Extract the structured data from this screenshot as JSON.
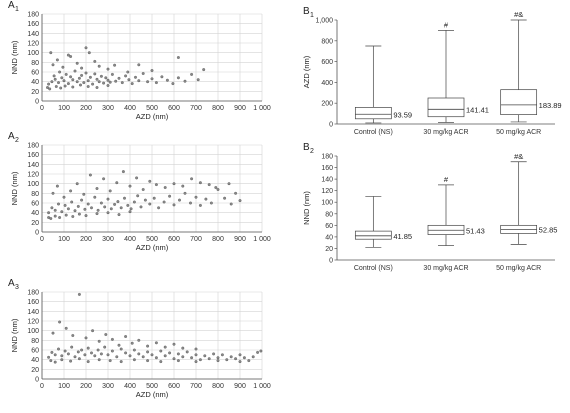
{
  "chart_data": [
    {
      "id": "A1",
      "type": "scatter",
      "panel_label": "A",
      "panel_sub": "1",
      "xlabel": "AZD (nm)",
      "ylabel": "NND (nm)",
      "xlim": [
        0,
        1000
      ],
      "ylim": [
        0,
        180
      ],
      "xticks": [
        "0",
        "100",
        "200",
        "300",
        "400",
        "500",
        "600",
        "700",
        "800",
        "900",
        "1 000"
      ],
      "yticks": [
        "0",
        "20",
        "40",
        "60",
        "80",
        "100",
        "120",
        "140",
        "160",
        "180"
      ],
      "grid": true,
      "points": [
        [
          30,
          35
        ],
        [
          45,
          40
        ],
        [
          55,
          52
        ],
        [
          60,
          45
        ],
        [
          75,
          38
        ],
        [
          80,
          60
        ],
        [
          90,
          48
        ],
        [
          100,
          42
        ],
        [
          110,
          55
        ],
        [
          120,
          36
        ],
        [
          130,
          50
        ],
        [
          140,
          44
        ],
        [
          150,
          62
        ],
        [
          160,
          40
        ],
        [
          170,
          47
        ],
        [
          180,
          53
        ],
        [
          190,
          38
        ],
        [
          200,
          58
        ],
        [
          210,
          42
        ],
        [
          220,
          49
        ],
        [
          230,
          35
        ],
        [
          240,
          56
        ],
        [
          250,
          45
        ],
        [
          260,
          40
        ],
        [
          270,
          51
        ],
        [
          280,
          37
        ],
        [
          290,
          48
        ],
        [
          300,
          43
        ],
        [
          310,
          39
        ],
        [
          320,
          55
        ],
        [
          335,
          41
        ],
        [
          350,
          47
        ],
        [
          365,
          38
        ],
        [
          380,
          52
        ],
        [
          395,
          44
        ],
        [
          410,
          36
        ],
        [
          425,
          49
        ],
        [
          440,
          42
        ],
        [
          460,
          57
        ],
        [
          480,
          40
        ],
        [
          500,
          46
        ],
        [
          520,
          38
        ],
        [
          545,
          50
        ],
        [
          570,
          43
        ],
        [
          595,
          36
        ],
        [
          620,
          48
        ],
        [
          650,
          41
        ],
        [
          680,
          55
        ],
        [
          710,
          44
        ],
        [
          735,
          65
        ],
        [
          50,
          75
        ],
        [
          70,
          85
        ],
        [
          95,
          70
        ],
        [
          130,
          92
        ],
        [
          180,
          68
        ],
        [
          200,
          110
        ],
        [
          215,
          100
        ],
        [
          240,
          82
        ],
        [
          260,
          72
        ],
        [
          300,
          66
        ],
        [
          330,
          74
        ],
        [
          390,
          60
        ],
        [
          440,
          75
        ],
        [
          500,
          63
        ],
        [
          620,
          90
        ],
        [
          40,
          100
        ],
        [
          120,
          95
        ],
        [
          160,
          78
        ],
        [
          25,
          28
        ],
        [
          35,
          25
        ],
        [
          65,
          30
        ],
        [
          85,
          27
        ],
        [
          105,
          31
        ],
        [
          140,
          29
        ],
        [
          175,
          33
        ],
        [
          210,
          30
        ],
        [
          250,
          28
        ],
        [
          300,
          32
        ]
      ]
    },
    {
      "id": "A2",
      "type": "scatter",
      "panel_label": "A",
      "panel_sub": "2",
      "xlabel": "AZD (nm)",
      "ylabel": "NND (nm)",
      "xlim": [
        0,
        1000
      ],
      "ylim": [
        0,
        180
      ],
      "xticks": [
        "0",
        "100",
        "200",
        "300",
        "400",
        "500",
        "600",
        "700",
        "800",
        "900",
        "1 000"
      ],
      "yticks": [
        "0",
        "20",
        "40",
        "60",
        "80",
        "100",
        "120",
        "140",
        "160",
        "180"
      ],
      "grid": true,
      "points": [
        [
          30,
          40
        ],
        [
          45,
          50
        ],
        [
          60,
          45
        ],
        [
          75,
          58
        ],
        [
          90,
          42
        ],
        [
          105,
          55
        ],
        [
          120,
          48
        ],
        [
          135,
          62
        ],
        [
          150,
          44
        ],
        [
          165,
          53
        ],
        [
          180,
          66
        ],
        [
          195,
          47
        ],
        [
          210,
          58
        ],
        [
          225,
          50
        ],
        [
          240,
          72
        ],
        [
          255,
          45
        ],
        [
          270,
          60
        ],
        [
          285,
          52
        ],
        [
          300,
          68
        ],
        [
          315,
          48
        ],
        [
          330,
          57
        ],
        [
          345,
          63
        ],
        [
          360,
          50
        ],
        [
          375,
          70
        ],
        [
          390,
          55
        ],
        [
          405,
          48
        ],
        [
          420,
          62
        ],
        [
          435,
          75
        ],
        [
          450,
          52
        ],
        [
          470,
          66
        ],
        [
          490,
          58
        ],
        [
          510,
          70
        ],
        [
          530,
          50
        ],
        [
          555,
          62
        ],
        [
          580,
          74
        ],
        [
          600,
          56
        ],
        [
          625,
          66
        ],
        [
          650,
          80
        ],
        [
          675,
          60
        ],
        [
          700,
          72
        ],
        [
          720,
          55
        ],
        [
          745,
          68
        ],
        [
          770,
          60
        ],
        [
          800,
          88
        ],
        [
          830,
          70
        ],
        [
          860,
          58
        ],
        [
          880,
          80
        ],
        [
          900,
          65
        ],
        [
          50,
          80
        ],
        [
          70,
          95
        ],
        [
          100,
          72
        ],
        [
          130,
          85
        ],
        [
          160,
          100
        ],
        [
          190,
          78
        ],
        [
          220,
          118
        ],
        [
          250,
          90
        ],
        [
          280,
          110
        ],
        [
          310,
          85
        ],
        [
          340,
          102
        ],
        [
          370,
          125
        ],
        [
          400,
          95
        ],
        [
          430,
          112
        ],
        [
          460,
          88
        ],
        [
          490,
          105
        ],
        [
          520,
          98
        ],
        [
          560,
          92
        ],
        [
          600,
          100
        ],
        [
          640,
          95
        ],
        [
          680,
          110
        ],
        [
          720,
          102
        ],
        [
          760,
          98
        ],
        [
          790,
          92
        ],
        [
          850,
          100
        ],
        [
          30,
          30
        ],
        [
          40,
          28
        ],
        [
          60,
          33
        ],
        [
          80,
          30
        ],
        [
          110,
          35
        ],
        [
          140,
          32
        ],
        [
          170,
          37
        ],
        [
          200,
          34
        ],
        [
          250,
          38
        ],
        [
          300,
          40
        ],
        [
          350,
          36
        ],
        [
          400,
          42
        ]
      ]
    },
    {
      "id": "A3",
      "type": "scatter",
      "panel_label": "A",
      "panel_sub": "3",
      "xlabel": "AZD (nm)",
      "ylabel": "NND (nm)",
      "xlim": [
        0,
        1000
      ],
      "ylim": [
        0,
        180
      ],
      "xticks": [
        "0",
        "100",
        "200",
        "300",
        "400",
        "500",
        "600",
        "700",
        "800",
        "900",
        "1 000"
      ],
      "yticks": [
        "0",
        "20",
        "40",
        "60",
        "80",
        "100",
        "120",
        "140",
        "160",
        "180"
      ],
      "grid": true,
      "points": [
        [
          30,
          45
        ],
        [
          45,
          55
        ],
        [
          60,
          50
        ],
        [
          75,
          62
        ],
        [
          90,
          48
        ],
        [
          105,
          58
        ],
        [
          120,
          52
        ],
        [
          135,
          66
        ],
        [
          150,
          46
        ],
        [
          165,
          56
        ],
        [
          180,
          60
        ],
        [
          195,
          50
        ],
        [
          210,
          64
        ],
        [
          225,
          54
        ],
        [
          240,
          48
        ],
        [
          255,
          60
        ],
        [
          270,
          52
        ],
        [
          285,
          66
        ],
        [
          300,
          50
        ],
        [
          320,
          58
        ],
        [
          340,
          46
        ],
        [
          360,
          62
        ],
        [
          380,
          54
        ],
        [
          400,
          48
        ],
        [
          420,
          60
        ],
        [
          440,
          52
        ],
        [
          460,
          46
        ],
        [
          480,
          56
        ],
        [
          500,
          50
        ],
        [
          520,
          44
        ],
        [
          540,
          58
        ],
        [
          560,
          48
        ],
        [
          580,
          54
        ],
        [
          600,
          42
        ],
        [
          620,
          52
        ],
        [
          640,
          46
        ],
        [
          660,
          56
        ],
        [
          680,
          44
        ],
        [
          700,
          50
        ],
        [
          720,
          40
        ],
        [
          740,
          48
        ],
        [
          760,
          42
        ],
        [
          780,
          52
        ],
        [
          800,
          44
        ],
        [
          820,
          50
        ],
        [
          840,
          40
        ],
        [
          860,
          46
        ],
        [
          880,
          42
        ],
        [
          900,
          50
        ],
        [
          920,
          44
        ],
        [
          940,
          38
        ],
        [
          960,
          46
        ],
        [
          980,
          55
        ],
        [
          995,
          58
        ],
        [
          50,
          95
        ],
        [
          80,
          118
        ],
        [
          110,
          105
        ],
        [
          140,
          90
        ],
        [
          170,
          175
        ],
        [
          200,
          85
        ],
        [
          230,
          100
        ],
        [
          260,
          78
        ],
        [
          290,
          92
        ],
        [
          320,
          82
        ],
        [
          350,
          70
        ],
        [
          380,
          88
        ],
        [
          410,
          74
        ],
        [
          440,
          80
        ],
        [
          480,
          68
        ],
        [
          520,
          75
        ],
        [
          560,
          66
        ],
        [
          600,
          72
        ],
        [
          640,
          64
        ],
        [
          700,
          62
        ],
        [
          40,
          38
        ],
        [
          60,
          35
        ],
        [
          90,
          40
        ],
        [
          130,
          37
        ],
        [
          170,
          42
        ],
        [
          210,
          36
        ],
        [
          260,
          40
        ],
        [
          310,
          38
        ],
        [
          360,
          36
        ],
        [
          420,
          40
        ],
        [
          480,
          38
        ],
        [
          540,
          36
        ],
        [
          620,
          38
        ],
        [
          700,
          36
        ],
        [
          800,
          38
        ],
        [
          900,
          36
        ]
      ]
    },
    {
      "id": "B1",
      "type": "box",
      "panel_label": "B",
      "panel_sub": "1",
      "ylabel": "AZD (nm)",
      "ylim": [
        0,
        1000
      ],
      "yticks": [
        "0",
        "200",
        "400",
        "600",
        "800",
        "1,000"
      ],
      "grid": false,
      "categories": [
        "Control (NS)",
        "30 mg/kg ACR",
        "50 mg/kg ACR"
      ],
      "boxes": [
        {
          "min": 10,
          "q1": 50,
          "median": 93.59,
          "q3": 160,
          "max": 750,
          "label": "93.59",
          "marker": ""
        },
        {
          "min": 15,
          "q1": 70,
          "median": 141.41,
          "q3": 250,
          "max": 900,
          "label": "141.41",
          "marker": "#"
        },
        {
          "min": 20,
          "q1": 90,
          "median": 183.89,
          "q3": 330,
          "max": 1000,
          "label": "183.89",
          "marker": "#&"
        }
      ]
    },
    {
      "id": "B2",
      "type": "box",
      "panel_label": "B",
      "panel_sub": "2",
      "ylabel": "NND (nm)",
      "ylim": [
        0,
        180
      ],
      "yticks": [
        "0",
        "20",
        "40",
        "60",
        "80",
        "100",
        "120",
        "140",
        "160",
        "180"
      ],
      "grid": false,
      "categories": [
        "Control (NS)",
        "30 mg/kg ACR",
        "50 mg/kg ACR"
      ],
      "boxes": [
        {
          "min": 22,
          "q1": 36,
          "median": 41.85,
          "q3": 50,
          "max": 110,
          "label": "41.85",
          "marker": ""
        },
        {
          "min": 25,
          "q1": 44,
          "median": 51.43,
          "q3": 60,
          "max": 130,
          "label": "51.43",
          "marker": "#"
        },
        {
          "min": 27,
          "q1": 46,
          "median": 52.85,
          "q3": 60,
          "max": 170,
          "label": "52.85",
          "marker": "#&"
        }
      ]
    }
  ]
}
